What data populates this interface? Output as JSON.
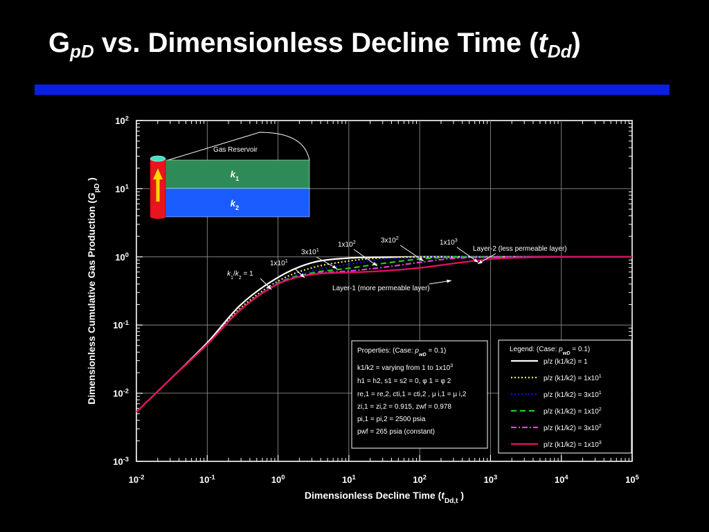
{
  "slide": {
    "title_main": "G",
    "title_sub": "pD",
    "title_rest": " vs. Dimensionless Decline Time (",
    "title_t": "t",
    "title_t_sub": "Dd",
    "title_close": ")"
  },
  "colors": {
    "background": "#000000",
    "accent_bar": "#0a1ee6",
    "layer1": "#2e8b57",
    "layer2": "#1a5cff",
    "well": "#e8141e",
    "well_cap": "#44e0c8",
    "arrow": "#ffd700"
  },
  "chart_data": {
    "type": "line",
    "xscale": "log",
    "yscale": "log",
    "xlim": [
      0.01,
      100000
    ],
    "ylim": [
      0.001,
      100
    ],
    "grid": true,
    "xlabel": "Dimensionless Decline Time (",
    "xlabel_var": "t",
    "xlabel_sub": "Dd,t",
    "xlabel_close": " )",
    "ylabel": "Dimensionless Cumulative Gas Production (",
    "ylabel_var": "G",
    "ylabel_sub": "pD",
    "ylabel_close": " )",
    "x_ticks": [
      {
        "base": "10",
        "exp": "-2"
      },
      {
        "base": "10",
        "exp": "-1"
      },
      {
        "base": "10",
        "exp": "0"
      },
      {
        "base": "10",
        "exp": "1"
      },
      {
        "base": "10",
        "exp": "2"
      },
      {
        "base": "10",
        "exp": "3"
      },
      {
        "base": "10",
        "exp": "4"
      },
      {
        "base": "10",
        "exp": "5"
      }
    ],
    "y_ticks": [
      {
        "base": "10",
        "exp": "-3"
      },
      {
        "base": "10",
        "exp": "-2"
      },
      {
        "base": "10",
        "exp": "-1"
      },
      {
        "base": "10",
        "exp": "0"
      },
      {
        "base": "10",
        "exp": "1"
      },
      {
        "base": "10",
        "exp": "2"
      }
    ],
    "x": [
      0.01,
      0.03,
      0.1,
      0.3,
      1,
      3,
      10,
      30,
      100,
      300,
      1000,
      3000,
      10000,
      30000,
      100000
    ],
    "series": [
      {
        "ratio": "1",
        "color": "#ffffff",
        "dash": "",
        "width": 2.2,
        "values": [
          0.0053,
          0.016,
          0.055,
          0.2,
          0.5,
          0.82,
          0.96,
          0.99,
          1,
          1,
          1,
          1,
          1,
          1,
          1
        ]
      },
      {
        "ratio": "1x10",
        "ratio_exp": "1",
        "color": "#f0f060",
        "dash": "2,3",
        "width": 2.2,
        "values": [
          0.0053,
          0.016,
          0.053,
          0.18,
          0.44,
          0.69,
          0.87,
          0.97,
          1,
          1,
          1,
          1,
          1,
          1,
          1
        ]
      },
      {
        "ratio": "3x10",
        "ratio_exp": "1",
        "color": "#1010dd",
        "dash": "2,3",
        "width": 2.2,
        "values": [
          0.0053,
          0.016,
          0.052,
          0.17,
          0.42,
          0.62,
          0.78,
          0.92,
          0.99,
          1,
          1,
          1,
          1,
          1,
          1
        ]
      },
      {
        "ratio": "1x10",
        "ratio_exp": "2",
        "color": "#22cc22",
        "dash": "8,5",
        "width": 2.2,
        "values": [
          0.0053,
          0.016,
          0.052,
          0.17,
          0.41,
          0.58,
          0.68,
          0.8,
          0.93,
          0.99,
          1,
          1,
          1,
          1,
          1
        ]
      },
      {
        "ratio": "3x10",
        "ratio_exp": "2",
        "color": "#e040e0",
        "dash": "8,3,2,3",
        "width": 2.2,
        "values": [
          0.0053,
          0.016,
          0.052,
          0.17,
          0.4,
          0.56,
          0.62,
          0.7,
          0.83,
          0.95,
          0.99,
          1,
          1,
          1,
          1
        ]
      },
      {
        "ratio": "1x10",
        "ratio_exp": "3",
        "color": "#dd1060",
        "dash": "",
        "width": 2.4,
        "values": [
          0.0053,
          0.016,
          0.052,
          0.17,
          0.4,
          0.55,
          0.59,
          0.62,
          0.69,
          0.8,
          0.93,
          0.98,
          1,
          1,
          1
        ]
      }
    ],
    "curve_labels": [
      {
        "text": "k1/k2 = 1",
        "base": "1",
        "exp": "",
        "kind": "ratio_eq"
      },
      {
        "text": "1x10",
        "exp": "1"
      },
      {
        "text": "3x10",
        "exp": "1"
      },
      {
        "text": "1x10",
        "exp": "2"
      },
      {
        "text": "3x10",
        "exp": "2"
      },
      {
        "text": "1x10",
        "exp": "3"
      }
    ],
    "annotations": {
      "layer2": "Layer-2 (less permeable layer)",
      "layer1": "Layer-1 (more permeable layer)"
    },
    "inset": {
      "title": "Gas Reservoir",
      "layer1_label": "k",
      "layer1_sub": "1",
      "layer2_label": "k",
      "layer2_sub": "2"
    },
    "properties_box": {
      "heading": "Properties: (Case: ",
      "heading_var": "p",
      "heading_sub": "wD",
      "heading_val": " = 0.1)",
      "line1": "k1/k2 = varying from 1 to 1x10",
      "line1_exp": "3",
      "line2": "h1 = h2, s1 = s2 = 0, φ 1 = φ 2",
      "line3": "re,1 = re,2, cti,1 = cti,2 , μ i,1 = μ i,2",
      "line4": "zi,1 = zi,2 = 0.915, zwf = 0.978",
      "line5": "pi,1 = pi,2 = 2500 psia",
      "line6": "pwf = 265 psia (constant)"
    },
    "legend": {
      "heading": "Legend:  (Case: ",
      "heading_var": "p",
      "heading_sub": "wD",
      "heading_val": " = 0.1)",
      "items": [
        {
          "label": "p/z (k1/k2) = 1",
          "exp": ""
        },
        {
          "label": "p/z (k1/k2) = 1x10",
          "exp": "1"
        },
        {
          "label": "p/z (k1/k2) = 3x10",
          "exp": "1"
        },
        {
          "label": "p/z (k1/k2) = 1x10",
          "exp": "2"
        },
        {
          "label": "p/z (k1/k2) = 3x10",
          "exp": "2"
        },
        {
          "label": "p/z (k1/k2) = 1x10",
          "exp": "3"
        }
      ]
    }
  }
}
